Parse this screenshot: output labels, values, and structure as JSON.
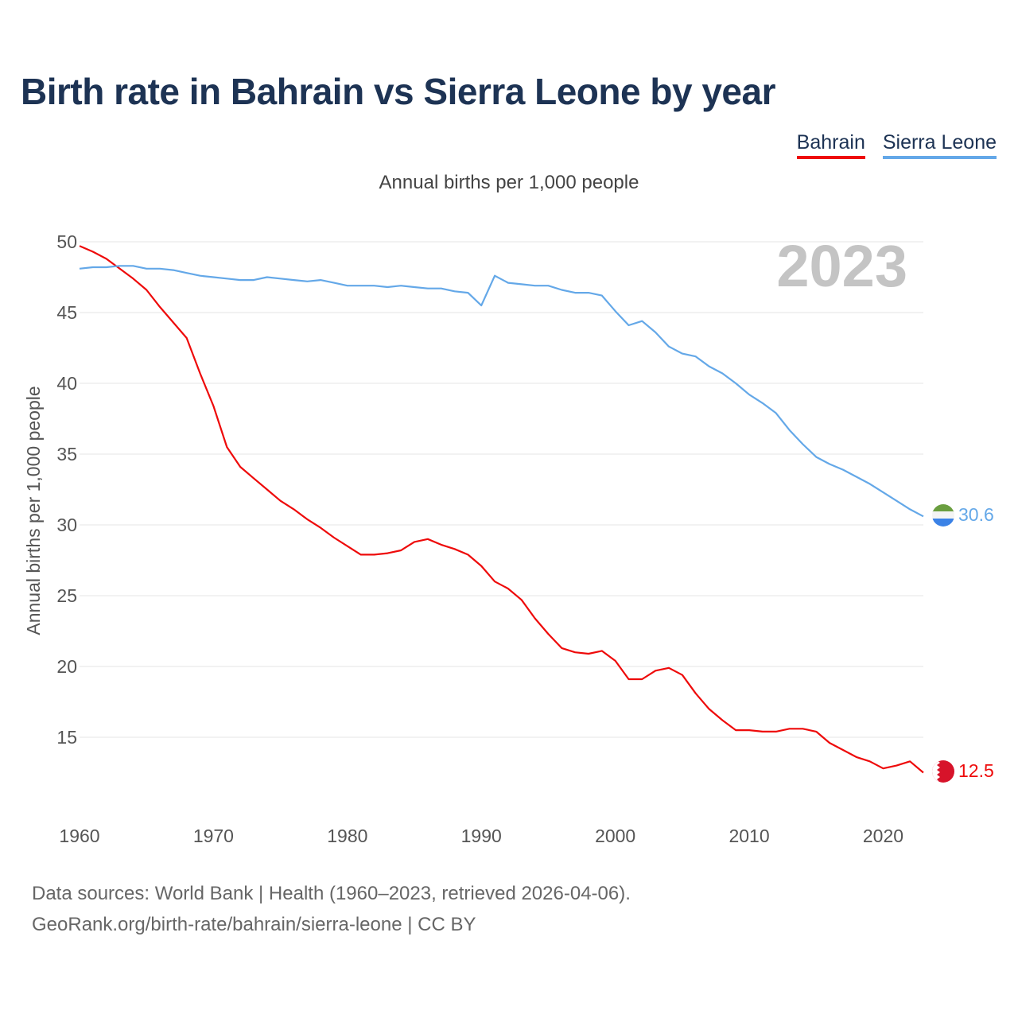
{
  "title": "Birth rate in Bahrain vs Sierra Leone by year",
  "legend": [
    {
      "name": "Bahrain",
      "color": "#ee0a0a"
    },
    {
      "name": "Sierra Leone",
      "color": "#64a8e8"
    }
  ],
  "subtitle": "Annual births per 1,000 people",
  "year_label": "2023",
  "source_line1": "Data sources: World Bank | Health (1960–2023, retrieved 2026-04-06).",
  "source_line2": "GeoRank.org/birth-rate/bahrain/sierra-leone | CC BY",
  "chart_data": {
    "type": "line",
    "title": "Birth rate in Bahrain vs Sierra Leone by year",
    "xlabel": "",
    "ylabel": "Annual births per 1,000 people",
    "xlim": [
      1960,
      2023
    ],
    "ylim": [
      10.5,
      50
    ],
    "yticks": [
      15,
      20,
      25,
      30,
      35,
      40,
      45,
      50
    ],
    "xticks": [
      1960,
      1970,
      1980,
      1990,
      2000,
      2010,
      2020
    ],
    "grid": true,
    "legend_position": "top-right",
    "series": [
      {
        "name": "Bahrain",
        "color": "#ee0a0a",
        "end_label": "12.5",
        "flag": "bahrain-flag-icon",
        "values": [
          49.7,
          49.3,
          48.8,
          48.1,
          47.4,
          46.6,
          45.4,
          44.3,
          43.2,
          40.7,
          38.4,
          35.5,
          34.1,
          33.3,
          32.5,
          31.7,
          31.1,
          30.4,
          29.8,
          29.1,
          28.5,
          27.9,
          27.9,
          28.0,
          28.2,
          28.8,
          29.0,
          28.6,
          28.3,
          27.9,
          27.1,
          26.0,
          25.5,
          24.7,
          23.4,
          22.3,
          21.3,
          21.0,
          20.9,
          21.1,
          20.4,
          19.1,
          19.1,
          19.7,
          19.9,
          19.4,
          18.1,
          17.0,
          16.2,
          15.5,
          15.5,
          15.4,
          15.4,
          15.6,
          15.6,
          15.4,
          14.6,
          14.1,
          13.6,
          13.3,
          12.8,
          13.0,
          13.3,
          12.5
        ]
      },
      {
        "name": "Sierra Leone",
        "color": "#64a8e8",
        "end_label": "30.6",
        "flag": "sierra-leone-flag-icon",
        "values": [
          48.1,
          48.2,
          48.2,
          48.3,
          48.3,
          48.1,
          48.1,
          48.0,
          47.8,
          47.6,
          47.5,
          47.4,
          47.3,
          47.3,
          47.5,
          47.4,
          47.3,
          47.2,
          47.3,
          47.1,
          46.9,
          46.9,
          46.9,
          46.8,
          46.9,
          46.8,
          46.7,
          46.7,
          46.5,
          46.4,
          45.5,
          47.6,
          47.1,
          47.0,
          46.9,
          46.9,
          46.6,
          46.4,
          46.4,
          46.2,
          45.1,
          44.1,
          44.4,
          43.6,
          42.6,
          42.1,
          41.9,
          41.2,
          40.7,
          40.0,
          39.2,
          38.6,
          37.9,
          36.7,
          35.7,
          34.8,
          34.3,
          33.9,
          33.4,
          32.9,
          32.3,
          31.7,
          31.1,
          30.6
        ]
      }
    ]
  }
}
